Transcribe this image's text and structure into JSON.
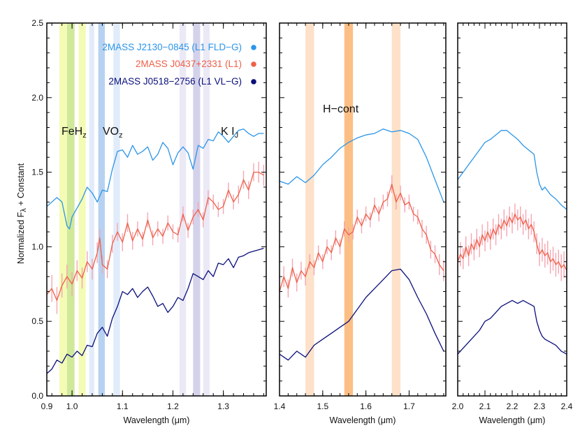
{
  "chart_data": {
    "type": "line",
    "ylabel_parts": {
      "main": "Normalized F",
      "sub": "λ",
      "rest": " + Constant"
    },
    "xlabel": "Wavelength (μm)",
    "ylim": [
      0.0,
      2.5
    ],
    "yticks": [
      "0.0",
      "0.5",
      "1.0",
      "1.5",
      "2.0",
      "2.5"
    ],
    "legend": [
      {
        "text": "2MASS J2130−0845 (L1 FLD−G)",
        "color": "#2b95e8"
      },
      {
        "text": "2MASS J0437+2331 (L1)",
        "color": "#ee6048"
      },
      {
        "text": "2MASS J0518−2756 (L1 VL−G)",
        "color": "#0a0f7a"
      }
    ],
    "labels": {
      "feh": {
        "main": "FeH",
        "sub": "z"
      },
      "vo": {
        "main": "VO",
        "sub": "z"
      },
      "ki": {
        "main": "K I",
        "sub": "J"
      },
      "hcont": "H−cont"
    },
    "colors": {
      "errorbar": "#f6a5b2"
    },
    "panels": [
      {
        "xlim": [
          0.95,
          1.385
        ],
        "xticks": [
          "0.9",
          "1.0",
          "1.1",
          "1.2",
          "1.3"
        ],
        "xtick_values": [
          0.9,
          1.0,
          1.1,
          1.2,
          1.3
        ],
        "bands": [
          {
            "x0": 0.975,
            "x1": 0.99,
            "color": "#f3fbb4"
          },
          {
            "x0": 0.99,
            "x1": 1.005,
            "color": "#cfe89a"
          },
          {
            "x0": 1.013,
            "x1": 1.027,
            "color": "#f3fbb4"
          },
          {
            "x0": 1.034,
            "x1": 1.044,
            "color": "#e1ecfb"
          },
          {
            "x0": 1.052,
            "x1": 1.065,
            "color": "#b7d1f0"
          },
          {
            "x0": 1.082,
            "x1": 1.095,
            "color": "#e1ecfb"
          },
          {
            "x0": 1.213,
            "x1": 1.226,
            "color": "#ece9f6"
          },
          {
            "x0": 1.24,
            "x1": 1.254,
            "color": "#d4d2ea"
          },
          {
            "x0": 1.26,
            "x1": 1.273,
            "color": "#ece9f6"
          }
        ],
        "series": [
          {
            "color": "#2b95e8",
            "x": [
              0.95,
              0.96,
              0.97,
              0.98,
              0.99,
              0.995,
              1.0,
              1.01,
              1.02,
              1.03,
              1.04,
              1.05,
              1.06,
              1.07,
              1.08,
              1.09,
              1.1,
              1.11,
              1.12,
              1.13,
              1.14,
              1.15,
              1.16,
              1.17,
              1.18,
              1.19,
              1.2,
              1.21,
              1.22,
              1.23,
              1.24,
              1.25,
              1.26,
              1.27,
              1.28,
              1.29,
              1.3,
              1.31,
              1.32,
              1.33,
              1.34,
              1.35,
              1.36,
              1.37,
              1.38
            ],
            "y": [
              1.27,
              1.3,
              1.33,
              1.3,
              1.14,
              1.12,
              1.2,
              1.26,
              1.32,
              1.4,
              1.36,
              1.3,
              1.38,
              1.37,
              1.52,
              1.64,
              1.65,
              1.6,
              1.68,
              1.62,
              1.64,
              1.67,
              1.58,
              1.62,
              1.7,
              1.66,
              1.55,
              1.63,
              1.67,
              1.63,
              1.52,
              1.68,
              1.66,
              1.72,
              1.71,
              1.77,
              1.74,
              1.7,
              1.74,
              1.78,
              1.79,
              1.76,
              1.74,
              1.76,
              1.76
            ]
          },
          {
            "color": "#ee6048",
            "errorbars": true,
            "x": [
              0.95,
              0.96,
              0.97,
              0.98,
              0.99,
              1.0,
              1.01,
              1.02,
              1.03,
              1.04,
              1.05,
              1.055,
              1.06,
              1.07,
              1.08,
              1.09,
              1.1,
              1.11,
              1.12,
              1.13,
              1.14,
              1.15,
              1.16,
              1.17,
              1.18,
              1.19,
              1.2,
              1.21,
              1.22,
              1.23,
              1.24,
              1.25,
              1.26,
              1.27,
              1.28,
              1.29,
              1.3,
              1.31,
              1.32,
              1.33,
              1.34,
              1.35,
              1.36,
              1.37,
              1.38
            ],
            "y": [
              0.68,
              0.72,
              0.64,
              0.74,
              0.8,
              0.75,
              0.84,
              0.79,
              0.9,
              0.85,
              0.96,
              1.06,
              0.88,
              0.85,
              1.02,
              1.1,
              1.03,
              1.16,
              1.04,
              1.12,
              1.05,
              1.18,
              1.06,
              1.12,
              1.07,
              1.16,
              1.1,
              1.08,
              1.22,
              1.11,
              1.2,
              1.25,
              1.18,
              1.33,
              1.3,
              1.25,
              1.27,
              1.38,
              1.3,
              1.35,
              1.45,
              1.38,
              1.5,
              1.5,
              1.48
            ],
            "err": [
              0.08,
              0.09,
              0.09,
              0.08,
              0.08,
              0.08,
              0.07,
              0.07,
              0.07,
              0.07,
              0.07,
              0.06,
              0.06,
              0.06,
              0.06,
              0.06,
              0.06,
              0.06,
              0.06,
              0.05,
              0.05,
              0.05,
              0.05,
              0.05,
              0.05,
              0.05,
              0.05,
              0.05,
              0.05,
              0.05,
              0.05,
              0.05,
              0.05,
              0.05,
              0.05,
              0.05,
              0.05,
              0.05,
              0.05,
              0.06,
              0.06,
              0.06,
              0.06,
              0.07,
              0.07
            ]
          },
          {
            "color": "#0a0f7a",
            "x": [
              0.95,
              0.96,
              0.97,
              0.98,
              0.99,
              1.0,
              1.01,
              1.02,
              1.03,
              1.04,
              1.05,
              1.06,
              1.07,
              1.08,
              1.09,
              1.1,
              1.11,
              1.12,
              1.13,
              1.14,
              1.15,
              1.16,
              1.17,
              1.18,
              1.19,
              1.2,
              1.21,
              1.22,
              1.23,
              1.24,
              1.25,
              1.26,
              1.27,
              1.28,
              1.29,
              1.3,
              1.31,
              1.32,
              1.33,
              1.34,
              1.35,
              1.36,
              1.37,
              1.38
            ],
            "y": [
              0.15,
              0.18,
              0.24,
              0.22,
              0.28,
              0.26,
              0.3,
              0.27,
              0.34,
              0.33,
              0.42,
              0.46,
              0.4,
              0.52,
              0.6,
              0.7,
              0.68,
              0.72,
              0.66,
              0.7,
              0.73,
              0.67,
              0.6,
              0.62,
              0.56,
              0.6,
              0.66,
              0.64,
              0.72,
              0.82,
              0.8,
              0.78,
              0.84,
              0.8,
              0.89,
              0.88,
              0.92,
              0.86,
              0.93,
              0.94,
              0.96,
              0.97,
              0.98,
              0.99
            ]
          }
        ]
      },
      {
        "xlim": [
          1.4,
          1.785
        ],
        "xticks": [
          "1.4",
          "1.5",
          "1.6",
          "1.7"
        ],
        "xtick_values": [
          1.4,
          1.5,
          1.6,
          1.7
        ],
        "bands": [
          {
            "x0": 1.46,
            "x1": 1.48,
            "color": "#fde1c9"
          },
          {
            "x0": 1.55,
            "x1": 1.57,
            "color": "#fbbf86"
          },
          {
            "x0": 1.66,
            "x1": 1.68,
            "color": "#fde1c9"
          }
        ],
        "series": [
          {
            "color": "#2b95e8",
            "x": [
              1.4,
              1.42,
              1.44,
              1.46,
              1.48,
              1.5,
              1.52,
              1.54,
              1.56,
              1.58,
              1.6,
              1.62,
              1.64,
              1.66,
              1.68,
              1.7,
              1.72,
              1.74,
              1.76,
              1.78
            ],
            "y": [
              1.44,
              1.42,
              1.47,
              1.43,
              1.48,
              1.55,
              1.6,
              1.66,
              1.7,
              1.73,
              1.75,
              1.76,
              1.79,
              1.77,
              1.78,
              1.76,
              1.72,
              1.6,
              1.45,
              1.3
            ]
          },
          {
            "color": "#ee6048",
            "errorbars": true,
            "x": [
              1.4,
              1.41,
              1.42,
              1.43,
              1.44,
              1.45,
              1.46,
              1.47,
              1.48,
              1.49,
              1.5,
              1.51,
              1.52,
              1.53,
              1.54,
              1.55,
              1.56,
              1.57,
              1.58,
              1.59,
              1.6,
              1.61,
              1.62,
              1.63,
              1.64,
              1.65,
              1.66,
              1.67,
              1.68,
              1.69,
              1.7,
              1.71,
              1.72,
              1.73,
              1.74,
              1.75,
              1.76,
              1.77,
              1.78
            ],
            "y": [
              0.7,
              0.8,
              0.72,
              0.86,
              0.76,
              0.84,
              0.8,
              0.9,
              0.86,
              0.96,
              0.9,
              1.0,
              0.96,
              1.06,
              1.0,
              1.12,
              1.08,
              1.1,
              1.2,
              1.14,
              1.22,
              1.18,
              1.28,
              1.22,
              1.3,
              1.32,
              1.42,
              1.3,
              1.36,
              1.28,
              1.3,
              1.22,
              1.2,
              1.12,
              1.08,
              0.98,
              0.95,
              0.88,
              0.84
            ],
            "err": [
              0.07,
              0.07,
              0.06,
              0.06,
              0.06,
              0.06,
              0.06,
              0.05,
              0.05,
              0.05,
              0.05,
              0.05,
              0.05,
              0.05,
              0.05,
              0.05,
              0.05,
              0.05,
              0.05,
              0.05,
              0.05,
              0.05,
              0.05,
              0.05,
              0.05,
              0.05,
              0.06,
              0.05,
              0.05,
              0.05,
              0.05,
              0.05,
              0.05,
              0.06,
              0.06,
              0.06,
              0.06,
              0.07,
              0.07
            ]
          },
          {
            "color": "#0a0f7a",
            "x": [
              1.4,
              1.42,
              1.44,
              1.46,
              1.48,
              1.5,
              1.52,
              1.54,
              1.56,
              1.58,
              1.6,
              1.62,
              1.64,
              1.66,
              1.68,
              1.7,
              1.72,
              1.74,
              1.76,
              1.78
            ],
            "y": [
              0.28,
              0.24,
              0.3,
              0.26,
              0.34,
              0.38,
              0.42,
              0.46,
              0.5,
              0.58,
              0.66,
              0.72,
              0.78,
              0.84,
              0.85,
              0.78,
              0.66,
              0.55,
              0.42,
              0.3
            ]
          }
        ]
      },
      {
        "xlim": [
          2.0,
          2.4
        ],
        "xticks": [
          "2.0",
          "2.1",
          "2.2",
          "2.3",
          "2.4"
        ],
        "xtick_values": [
          2.0,
          2.1,
          2.2,
          2.3,
          2.4
        ],
        "bands": [],
        "series": [
          {
            "color": "#2b95e8",
            "x": [
              2.0,
              2.02,
              2.04,
              2.06,
              2.08,
              2.1,
              2.12,
              2.14,
              2.16,
              2.18,
              2.2,
              2.22,
              2.24,
              2.26,
              2.28,
              2.29,
              2.3,
              2.31,
              2.32,
              2.34,
              2.36,
              2.38,
              2.4
            ],
            "y": [
              1.45,
              1.5,
              1.55,
              1.6,
              1.65,
              1.7,
              1.72,
              1.75,
              1.78,
              1.78,
              1.75,
              1.72,
              1.68,
              1.65,
              1.62,
              1.5,
              1.42,
              1.38,
              1.4,
              1.35,
              1.32,
              1.28,
              1.25
            ]
          },
          {
            "color": "#ee6048",
            "errorbars": true,
            "x": [
              2.0,
              2.01,
              2.02,
              2.03,
              2.04,
              2.05,
              2.06,
              2.07,
              2.08,
              2.09,
              2.1,
              2.11,
              2.12,
              2.13,
              2.14,
              2.15,
              2.16,
              2.17,
              2.18,
              2.19,
              2.2,
              2.21,
              2.22,
              2.23,
              2.24,
              2.25,
              2.26,
              2.27,
              2.28,
              2.29,
              2.3,
              2.31,
              2.32,
              2.33,
              2.34,
              2.35,
              2.36,
              2.37,
              2.38,
              2.39,
              2.4
            ],
            "y": [
              0.9,
              0.95,
              0.92,
              1.0,
              0.94,
              1.02,
              0.98,
              1.05,
              1.0,
              1.08,
              1.04,
              1.1,
              1.05,
              1.12,
              1.08,
              1.15,
              1.12,
              1.18,
              1.14,
              1.2,
              1.16,
              1.22,
              1.18,
              1.2,
              1.15,
              1.18,
              1.12,
              1.15,
              1.1,
              1.02,
              0.95,
              0.98,
              0.94,
              0.96,
              0.9,
              0.92,
              0.88,
              0.9,
              0.86,
              0.88,
              0.84
            ],
            "err": [
              0.08,
              0.08,
              0.07,
              0.07,
              0.07,
              0.07,
              0.07,
              0.07,
              0.07,
              0.07,
              0.07,
              0.07,
              0.07,
              0.07,
              0.07,
              0.07,
              0.07,
              0.07,
              0.07,
              0.07,
              0.07,
              0.07,
              0.07,
              0.07,
              0.07,
              0.07,
              0.07,
              0.07,
              0.07,
              0.07,
              0.08,
              0.08,
              0.08,
              0.08,
              0.08,
              0.08,
              0.08,
              0.08,
              0.09,
              0.09,
              0.09
            ]
          },
          {
            "color": "#0a0f7a",
            "x": [
              2.0,
              2.02,
              2.04,
              2.06,
              2.08,
              2.1,
              2.12,
              2.14,
              2.16,
              2.18,
              2.2,
              2.22,
              2.24,
              2.26,
              2.28,
              2.29,
              2.3,
              2.31,
              2.32,
              2.34,
              2.36,
              2.38,
              2.4
            ],
            "y": [
              0.28,
              0.32,
              0.36,
              0.4,
              0.44,
              0.5,
              0.52,
              0.56,
              0.6,
              0.62,
              0.64,
              0.62,
              0.64,
              0.62,
              0.6,
              0.5,
              0.44,
              0.4,
              0.38,
              0.36,
              0.34,
              0.3,
              0.28
            ]
          }
        ]
      }
    ]
  }
}
